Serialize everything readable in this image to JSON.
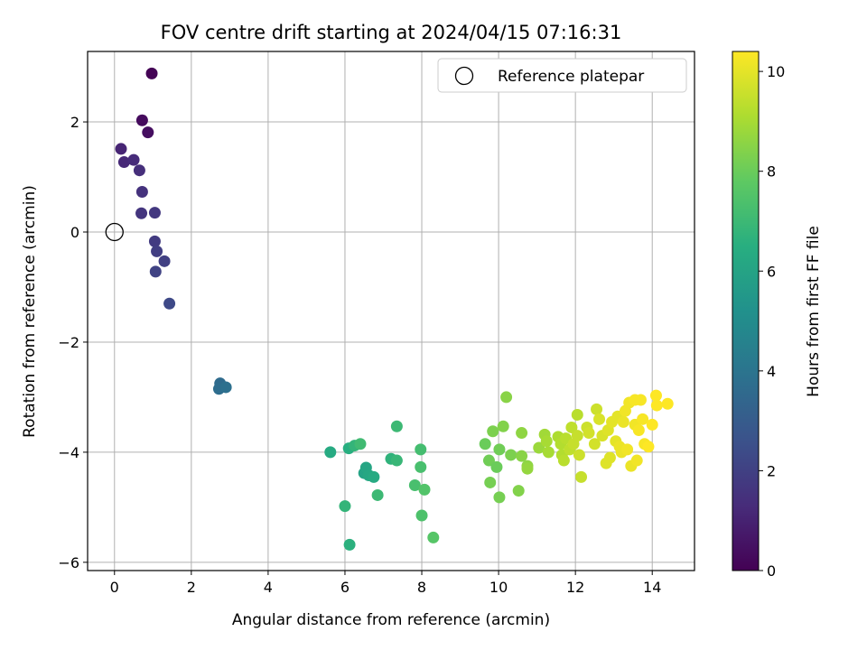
{
  "chart_data": {
    "type": "scatter",
    "title": "FOV centre drift starting at 2024/04/15 07:16:31",
    "xlabel": "Angular distance from reference (arcmin)",
    "ylabel": "Rotation from reference (arcmin)",
    "xlim": [
      -0.7,
      15.1
    ],
    "ylim": [
      -6.15,
      3.28
    ],
    "xticks": [
      0,
      2,
      4,
      6,
      8,
      10,
      12,
      14
    ],
    "yticks": [
      -6,
      -4,
      -2,
      0,
      2
    ],
    "grid": true,
    "legend": {
      "position": "upper-right",
      "entries": [
        "Reference platepar"
      ]
    },
    "reference_point": {
      "x": 0,
      "y": 0,
      "label": "Reference platepar"
    },
    "colorbar": {
      "label": "Hours from first FF file",
      "colormap": "viridis",
      "range": [
        0,
        10.4
      ],
      "ticks": [
        0,
        2,
        4,
        6,
        8,
        10
      ]
    },
    "series": [
      {
        "points": [
          {
            "x": 0.97,
            "y": 2.88,
            "c": 0.05
          },
          {
            "x": 0.72,
            "y": 2.03,
            "c": 0.3
          },
          {
            "x": 0.87,
            "y": 1.81,
            "c": 0.4
          },
          {
            "x": 0.17,
            "y": 1.51,
            "c": 1.1
          },
          {
            "x": 0.25,
            "y": 1.27,
            "c": 1.2
          },
          {
            "x": 0.5,
            "y": 1.31,
            "c": 1.3
          },
          {
            "x": 0.65,
            "y": 1.12,
            "c": 1.4
          },
          {
            "x": 0.72,
            "y": 0.73,
            "c": 1.5
          },
          {
            "x": 0.7,
            "y": 0.34,
            "c": 1.6
          },
          {
            "x": 1.05,
            "y": 0.35,
            "c": 1.7
          },
          {
            "x": 1.05,
            "y": -0.17,
            "c": 1.8
          },
          {
            "x": 1.1,
            "y": -0.35,
            "c": 1.9
          },
          {
            "x": 1.3,
            "y": -0.53,
            "c": 2.0
          },
          {
            "x": 1.07,
            "y": -0.72,
            "c": 2.1
          },
          {
            "x": 1.43,
            "y": -1.3,
            "c": 2.3
          },
          {
            "x": 2.75,
            "y": -2.75,
            "c": 3.6
          },
          {
            "x": 2.72,
            "y": -2.85,
            "c": 3.7
          },
          {
            "x": 2.9,
            "y": -2.82,
            "c": 3.8
          },
          {
            "x": 5.62,
            "y": -4.0,
            "c": 6.3
          },
          {
            "x": 6.0,
            "y": -4.98,
            "c": 6.8
          },
          {
            "x": 6.1,
            "y": -3.93,
            "c": 6.5
          },
          {
            "x": 6.12,
            "y": -5.68,
            "c": 6.6
          },
          {
            "x": 6.25,
            "y": -3.88,
            "c": 6.8
          },
          {
            "x": 6.4,
            "y": -3.85,
            "c": 7.1
          },
          {
            "x": 6.5,
            "y": -4.38,
            "c": 6.0
          },
          {
            "x": 6.55,
            "y": -4.28,
            "c": 6.1
          },
          {
            "x": 6.62,
            "y": -4.42,
            "c": 6.2
          },
          {
            "x": 6.75,
            "y": -4.45,
            "c": 6.3
          },
          {
            "x": 6.85,
            "y": -4.78,
            "c": 7.0
          },
          {
            "x": 7.2,
            "y": -4.12,
            "c": 6.7
          },
          {
            "x": 7.35,
            "y": -4.15,
            "c": 6.9
          },
          {
            "x": 7.35,
            "y": -3.53,
            "c": 7.0
          },
          {
            "x": 7.82,
            "y": -4.6,
            "c": 7.3
          },
          {
            "x": 7.97,
            "y": -3.95,
            "c": 7.2
          },
          {
            "x": 7.97,
            "y": -4.27,
            "c": 7.3
          },
          {
            "x": 8.0,
            "y": -5.15,
            "c": 7.4
          },
          {
            "x": 8.07,
            "y": -4.68,
            "c": 7.5
          },
          {
            "x": 8.3,
            "y": -5.55,
            "c": 7.6
          },
          {
            "x": 9.65,
            "y": -3.85,
            "c": 8.0
          },
          {
            "x": 9.75,
            "y": -4.15,
            "c": 8.1
          },
          {
            "x": 9.78,
            "y": -4.55,
            "c": 8.2
          },
          {
            "x": 9.85,
            "y": -3.62,
            "c": 8.3
          },
          {
            "x": 9.95,
            "y": -4.27,
            "c": 8.0
          },
          {
            "x": 10.02,
            "y": -3.95,
            "c": 8.1
          },
          {
            "x": 10.02,
            "y": -4.82,
            "c": 8.2
          },
          {
            "x": 10.12,
            "y": -3.53,
            "c": 8.4
          },
          {
            "x": 10.2,
            "y": -3.0,
            "c": 8.5
          },
          {
            "x": 10.32,
            "y": -4.05,
            "c": 8.3
          },
          {
            "x": 10.52,
            "y": -4.7,
            "c": 8.4
          },
          {
            "x": 10.6,
            "y": -3.65,
            "c": 8.6
          },
          {
            "x": 10.6,
            "y": -4.07,
            "c": 8.5
          },
          {
            "x": 10.75,
            "y": -4.25,
            "c": 8.6
          },
          {
            "x": 10.75,
            "y": -4.3,
            "c": 8.7
          },
          {
            "x": 11.05,
            "y": -3.92,
            "c": 8.8
          },
          {
            "x": 11.2,
            "y": -3.68,
            "c": 8.9
          },
          {
            "x": 11.25,
            "y": -3.8,
            "c": 9.0
          },
          {
            "x": 11.3,
            "y": -4.0,
            "c": 9.0
          },
          {
            "x": 11.55,
            "y": -3.72,
            "c": 9.1
          },
          {
            "x": 11.62,
            "y": -3.85,
            "c": 9.2
          },
          {
            "x": 11.65,
            "y": -4.05,
            "c": 9.2
          },
          {
            "x": 11.7,
            "y": -4.15,
            "c": 9.3
          },
          {
            "x": 11.75,
            "y": -3.75,
            "c": 9.3
          },
          {
            "x": 11.85,
            "y": -3.95,
            "c": 9.4
          },
          {
            "x": 11.9,
            "y": -3.55,
            "c": 9.4
          },
          {
            "x": 11.95,
            "y": -3.85,
            "c": 9.5
          },
          {
            "x": 12.05,
            "y": -3.32,
            "c": 9.3
          },
          {
            "x": 12.05,
            "y": -3.7,
            "c": 9.5
          },
          {
            "x": 12.1,
            "y": -4.05,
            "c": 9.6
          },
          {
            "x": 12.15,
            "y": -4.45,
            "c": 9.5
          },
          {
            "x": 12.3,
            "y": -3.55,
            "c": 9.6
          },
          {
            "x": 12.35,
            "y": -3.65,
            "c": 9.7
          },
          {
            "x": 12.5,
            "y": -3.85,
            "c": 9.7
          },
          {
            "x": 12.55,
            "y": -3.22,
            "c": 9.6
          },
          {
            "x": 12.62,
            "y": -3.4,
            "c": 9.8
          },
          {
            "x": 12.7,
            "y": -3.7,
            "c": 9.8
          },
          {
            "x": 12.8,
            "y": -4.2,
            "c": 9.9
          },
          {
            "x": 12.85,
            "y": -3.6,
            "c": 9.9
          },
          {
            "x": 12.9,
            "y": -4.1,
            "c": 9.9
          },
          {
            "x": 12.95,
            "y": -3.45,
            "c": 10.0
          },
          {
            "x": 13.05,
            "y": -3.8,
            "c": 10.0
          },
          {
            "x": 13.1,
            "y": -3.35,
            "c": 10.0
          },
          {
            "x": 13.15,
            "y": -3.9,
            "c": 10.1
          },
          {
            "x": 13.2,
            "y": -4.0,
            "c": 10.1
          },
          {
            "x": 13.25,
            "y": -3.45,
            "c": 10.1
          },
          {
            "x": 13.3,
            "y": -3.25,
            "c": 10.2
          },
          {
            "x": 13.35,
            "y": -3.95,
            "c": 10.2
          },
          {
            "x": 13.4,
            "y": -3.1,
            "c": 10.2
          },
          {
            "x": 13.45,
            "y": -4.25,
            "c": 10.1
          },
          {
            "x": 13.55,
            "y": -3.05,
            "c": 10.3
          },
          {
            "x": 13.55,
            "y": -3.5,
            "c": 10.2
          },
          {
            "x": 13.6,
            "y": -4.15,
            "c": 10.2
          },
          {
            "x": 13.65,
            "y": -3.6,
            "c": 10.3
          },
          {
            "x": 13.7,
            "y": -3.05,
            "c": 10.3
          },
          {
            "x": 13.75,
            "y": -3.4,
            "c": 10.3
          },
          {
            "x": 13.8,
            "y": -3.85,
            "c": 10.3
          },
          {
            "x": 13.9,
            "y": -3.9,
            "c": 10.4
          },
          {
            "x": 14.0,
            "y": -3.5,
            "c": 10.4
          },
          {
            "x": 14.1,
            "y": -2.97,
            "c": 10.4
          },
          {
            "x": 14.12,
            "y": -3.15,
            "c": 10.4
          },
          {
            "x": 14.4,
            "y": -3.12,
            "c": 10.4
          }
        ]
      }
    ]
  }
}
